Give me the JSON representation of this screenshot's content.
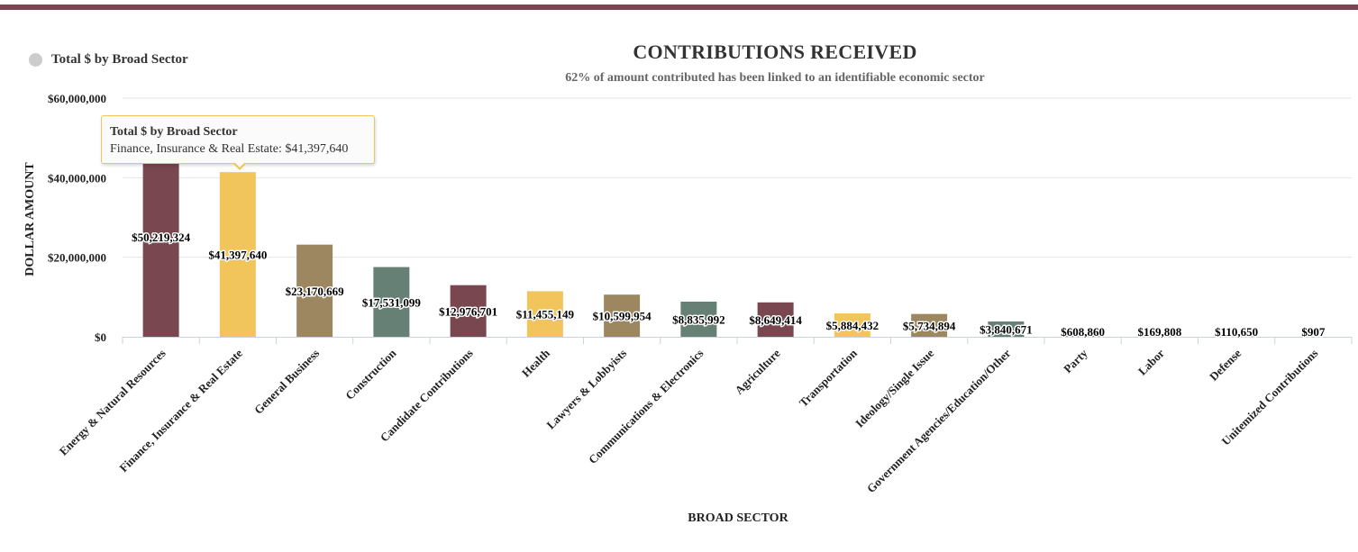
{
  "legend": {
    "label": "Total $ by Broad Sector",
    "color": "#cccccc"
  },
  "header": {
    "title": "CONTRIBUTIONS RECEIVED",
    "subtitle": "62% of amount contributed has been linked to an identifiable economic sector"
  },
  "tooltip": {
    "title": "Total $ by Broad Sector",
    "body": "Finance, Insurance & Real Estate: $41,397,640"
  },
  "colors": {
    "maroon": "#784750",
    "gold": "#f2c45c",
    "tan": "#9c8761",
    "slate": "#668075",
    "accent": "#7a4550"
  },
  "chart_data": {
    "type": "bar",
    "title": "CONTRIBUTIONS RECEIVED",
    "subtitle": "62% of amount contributed has been linked to an identifiable economic sector",
    "xlabel": "BROAD SECTOR",
    "ylabel": "DOLLAR AMOUNT",
    "ylim": [
      0,
      60000000
    ],
    "yticks": [
      0,
      20000000,
      40000000,
      60000000
    ],
    "ytick_labels": [
      "$0",
      "$20,000,000",
      "$40,000,000",
      "$60,000,000"
    ],
    "series_name": "Total $ by Broad Sector",
    "categories": [
      "Energy & Natural Resources",
      "Finance, Insurance & Real Estate",
      "General Business",
      "Construction",
      "Candidate Contributions",
      "Health",
      "Lawyers & Lobbyists",
      "Communications & Electronics",
      "Agriculture",
      "Transportation",
      "Ideology/Single Issue",
      "Government Agencies/Education/Other",
      "Party",
      "Labor",
      "Defense",
      "Unitemized Contributions"
    ],
    "values": [
      50219324,
      41397640,
      23170669,
      17531099,
      12976701,
      11455149,
      10599954,
      8835992,
      8649414,
      5884432,
      5734894,
      3840671,
      608860,
      169808,
      110650,
      907
    ],
    "value_labels": [
      "$50,219,324",
      "$41,397,640",
      "$23,170,669",
      "$17,531,099",
      "$12,976,701",
      "$11,455,149",
      "$10,599,954",
      "$8,835,992",
      "$8,649,414",
      "$5,884,432",
      "$5,734,894",
      "$3,840,671",
      "$608,860",
      "$169,808",
      "$110,650",
      "$907"
    ],
    "bar_colors": [
      "#784750",
      "#f2c45c",
      "#9c8761",
      "#668075",
      "#784750",
      "#f2c45c",
      "#9c8761",
      "#668075",
      "#784750",
      "#f2c45c",
      "#9c8761",
      "#668075",
      "#784750",
      "#f2c45c",
      "#9c8761",
      "#668075"
    ]
  }
}
